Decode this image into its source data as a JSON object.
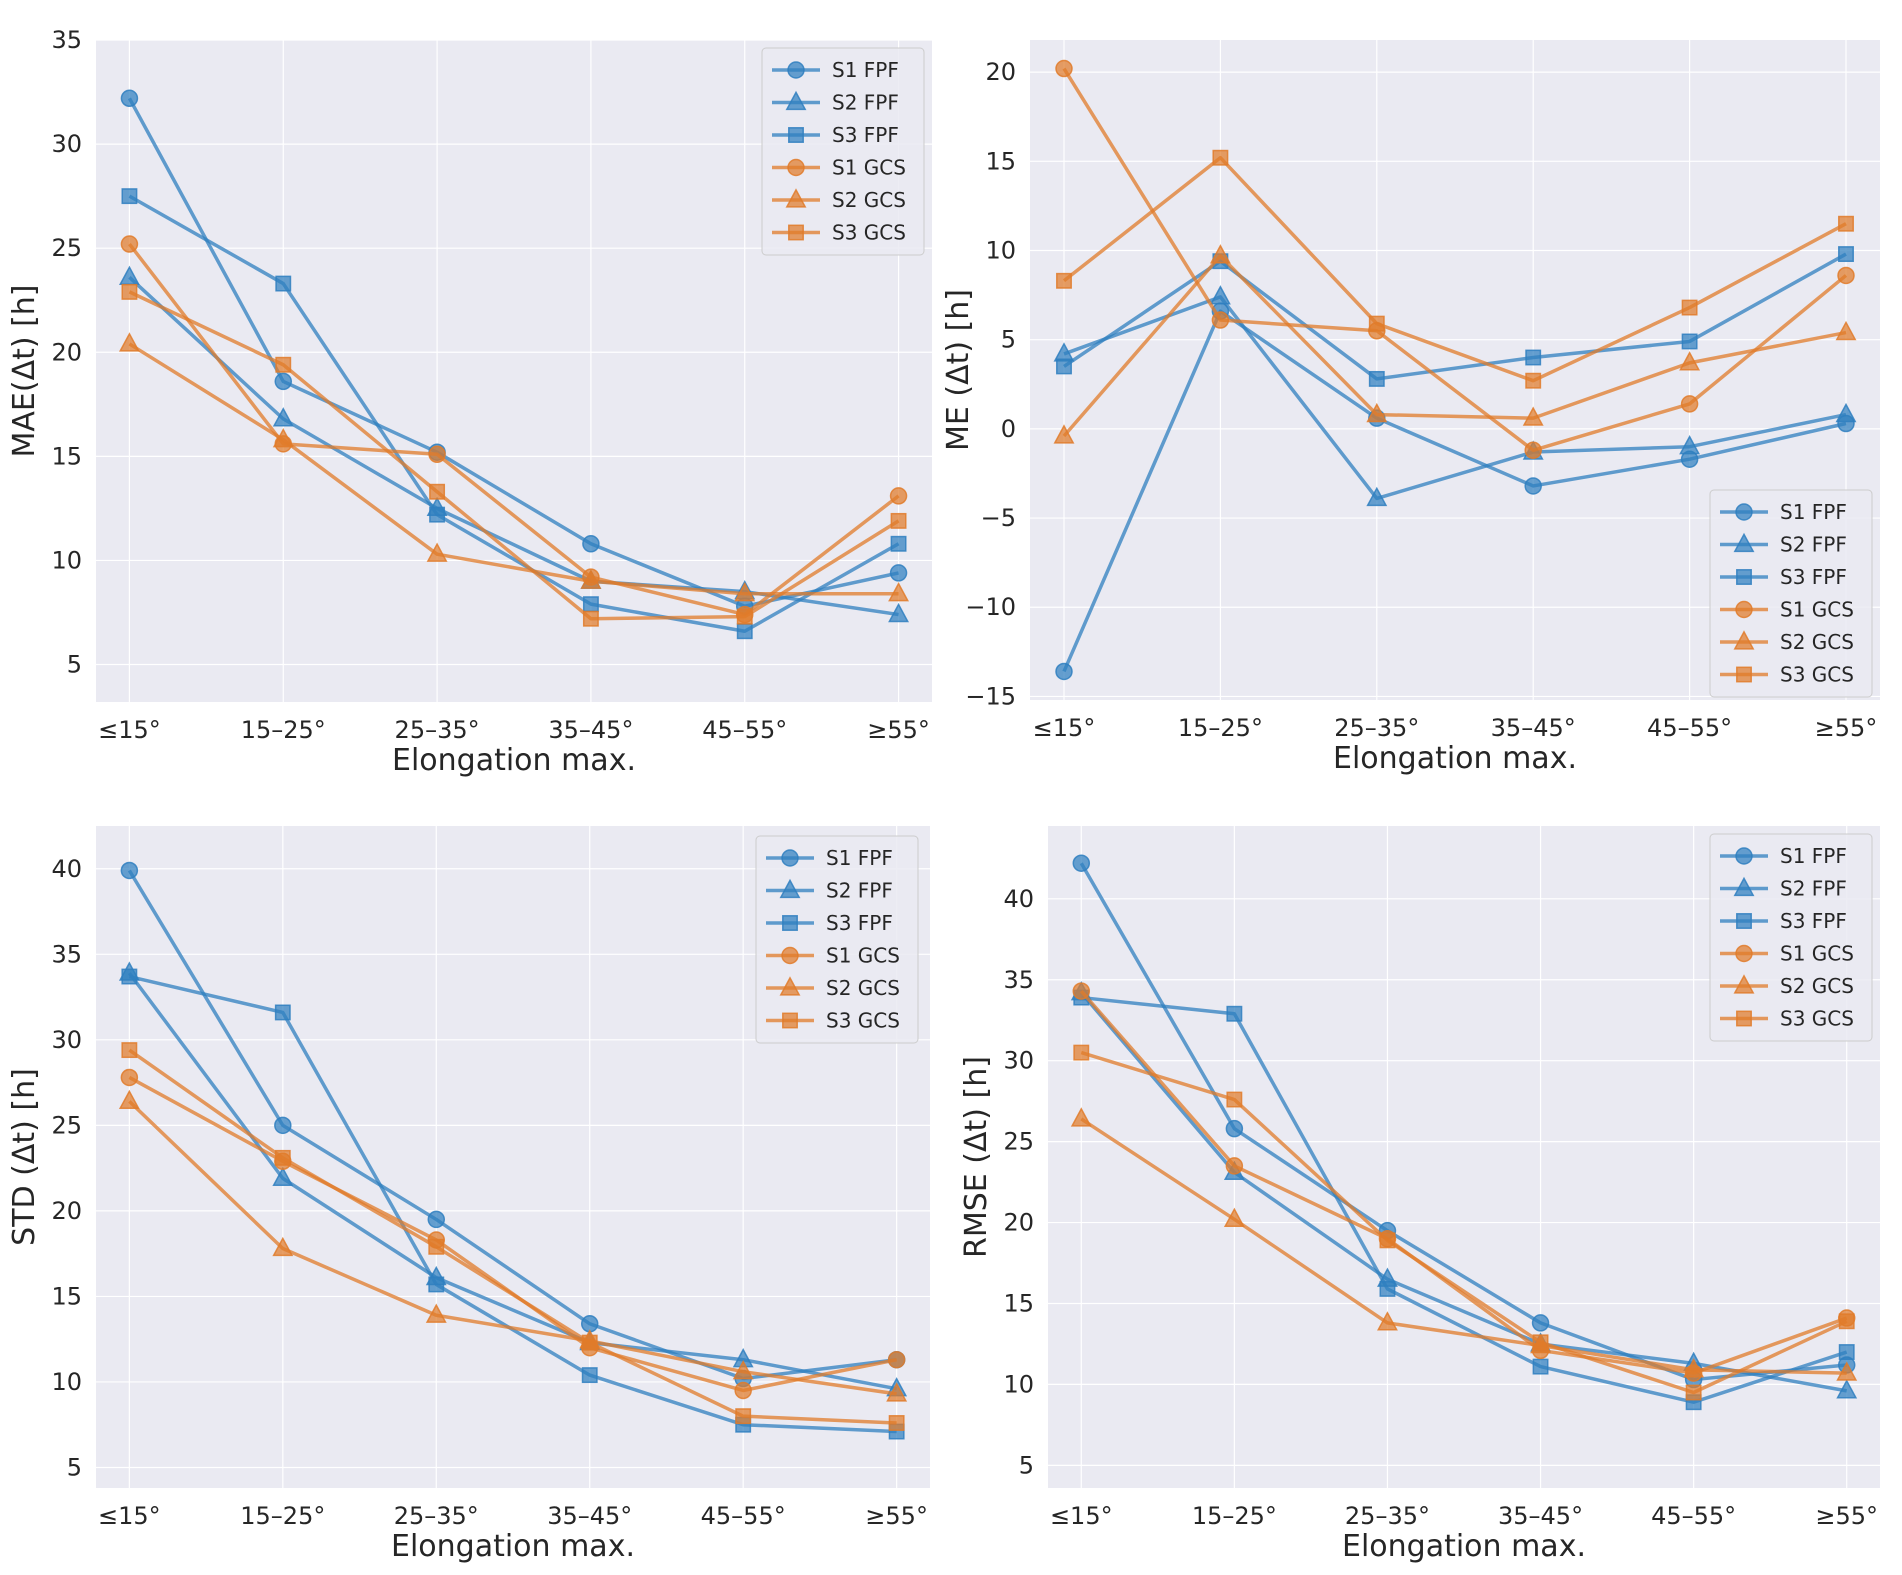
{
  "colors": {
    "FPF": "#2f7fbf",
    "GCS": "#e07b2a",
    "panel_bg": "#eaeaf2",
    "grid": "#ffffff"
  },
  "chart_data": [
    {
      "type": "line",
      "ylabel": "MAE(Δt) [h]",
      "xlabel": "Elongation max.",
      "categories": [
        "≤15°",
        "15–25°",
        "25–35°",
        "35–45°",
        "45–55°",
        "≥55°"
      ],
      "ylim": [
        3.2,
        35
      ],
      "yticks": [
        5,
        10,
        15,
        20,
        25,
        30,
        35
      ],
      "legend": "top-right",
      "series": [
        {
          "name": "S1 FPF",
          "group": "FPF",
          "marker": "circle",
          "values": [
            32.2,
            18.6,
            15.2,
            10.8,
            7.8,
            9.4
          ]
        },
        {
          "name": "S2 FPF",
          "group": "FPF",
          "marker": "triangle",
          "values": [
            23.6,
            16.8,
            12.5,
            9.0,
            8.5,
            7.4
          ]
        },
        {
          "name": "S3 FPF",
          "group": "FPF",
          "marker": "square",
          "values": [
            27.5,
            23.3,
            12.2,
            7.9,
            6.6,
            10.8
          ]
        },
        {
          "name": "S1 GCS",
          "group": "GCS",
          "marker": "circle",
          "values": [
            25.2,
            15.6,
            15.1,
            9.2,
            7.4,
            13.1
          ]
        },
        {
          "name": "S2 GCS",
          "group": "GCS",
          "marker": "triangle",
          "values": [
            20.4,
            15.8,
            10.3,
            9.0,
            8.4,
            8.4
          ]
        },
        {
          "name": "S3 GCS",
          "group": "GCS",
          "marker": "square",
          "values": [
            22.9,
            19.4,
            13.3,
            7.2,
            7.3,
            11.9
          ]
        }
      ]
    },
    {
      "type": "line",
      "ylabel": "ME (Δt) [h]",
      "xlabel": "Elongation max.",
      "categories": [
        "≤15°",
        "15–25°",
        "25–35°",
        "35–45°",
        "45–55°",
        "≥55°"
      ],
      "ylim": [
        -15.2,
        21.8
      ],
      "yticks": [
        -15,
        -10,
        -5,
        0,
        5,
        10,
        15,
        20
      ],
      "legend": "bottom-right",
      "series": [
        {
          "name": "S1 FPF",
          "group": "FPF",
          "marker": "circle",
          "values": [
            -13.6,
            6.6,
            0.6,
            -3.2,
            -1.7,
            0.3
          ]
        },
        {
          "name": "S2 FPF",
          "group": "FPF",
          "marker": "triangle",
          "values": [
            4.2,
            7.4,
            -3.9,
            -1.3,
            -1.0,
            0.8
          ]
        },
        {
          "name": "S3 FPF",
          "group": "FPF",
          "marker": "square",
          "values": [
            3.5,
            9.4,
            2.8,
            4.0,
            4.9,
            9.8
          ]
        },
        {
          "name": "S1 GCS",
          "group": "GCS",
          "marker": "circle",
          "values": [
            20.2,
            6.1,
            5.5,
            -1.2,
            1.4,
            8.6
          ]
        },
        {
          "name": "S2 GCS",
          "group": "GCS",
          "marker": "triangle",
          "values": [
            -0.4,
            9.7,
            0.8,
            0.6,
            3.7,
            5.4
          ]
        },
        {
          "name": "S3 GCS",
          "group": "GCS",
          "marker": "square",
          "values": [
            8.3,
            15.2,
            5.9,
            2.7,
            6.8,
            11.5
          ]
        }
      ]
    },
    {
      "type": "line",
      "ylabel": "STD (Δt) [h]",
      "xlabel": "Elongation max.",
      "categories": [
        "≤15°",
        "15–25°",
        "25–35°",
        "35–45°",
        "45–55°",
        "≥55°"
      ],
      "ylim": [
        3.8,
        42.5
      ],
      "yticks": [
        5,
        10,
        15,
        20,
        25,
        30,
        35,
        40
      ],
      "legend": "top-right",
      "series": [
        {
          "name": "S1 FPF",
          "group": "FPF",
          "marker": "circle",
          "values": [
            39.9,
            25.0,
            19.5,
            13.4,
            10.2,
            11.3
          ]
        },
        {
          "name": "S2 FPF",
          "group": "FPF",
          "marker": "triangle",
          "values": [
            33.9,
            21.9,
            16.1,
            12.3,
            11.3,
            9.6
          ]
        },
        {
          "name": "S3 FPF",
          "group": "FPF",
          "marker": "square",
          "values": [
            33.7,
            31.6,
            15.7,
            10.4,
            7.5,
            7.1
          ]
        },
        {
          "name": "S1 GCS",
          "group": "GCS",
          "marker": "circle",
          "values": [
            27.8,
            22.9,
            18.3,
            12.0,
            9.5,
            11.3
          ]
        },
        {
          "name": "S2 GCS",
          "group": "GCS",
          "marker": "triangle",
          "values": [
            26.4,
            17.8,
            13.9,
            12.4,
            10.6,
            9.3
          ]
        },
        {
          "name": "S3 GCS",
          "group": "GCS",
          "marker": "square",
          "values": [
            29.4,
            23.1,
            17.9,
            12.3,
            8.0,
            7.6
          ]
        }
      ]
    },
    {
      "type": "line",
      "ylabel": "RMSE (Δt) [h]",
      "xlabel": "Elongation max.",
      "categories": [
        "≤15°",
        "15–25°",
        "25–35°",
        "35–45°",
        "45–55°",
        "≥55°"
      ],
      "ylim": [
        3.6,
        44.5
      ],
      "yticks": [
        5,
        10,
        15,
        20,
        25,
        30,
        35,
        40
      ],
      "legend": "top-right",
      "series": [
        {
          "name": "S1 FPF",
          "group": "FPF",
          "marker": "circle",
          "values": [
            42.2,
            25.8,
            19.5,
            13.8,
            10.3,
            11.2
          ]
        },
        {
          "name": "S2 FPF",
          "group": "FPF",
          "marker": "triangle",
          "values": [
            34.2,
            23.1,
            16.5,
            12.5,
            11.3,
            9.6
          ]
        },
        {
          "name": "S3 FPF",
          "group": "FPF",
          "marker": "square",
          "values": [
            33.9,
            32.9,
            15.9,
            11.1,
            8.9,
            12.0
          ]
        },
        {
          "name": "S1 GCS",
          "group": "GCS",
          "marker": "circle",
          "values": [
            34.3,
            23.5,
            19.0,
            12.1,
            10.7,
            14.1
          ]
        },
        {
          "name": "S2 GCS",
          "group": "GCS",
          "marker": "triangle",
          "values": [
            26.4,
            20.2,
            13.8,
            12.4,
            10.9,
            10.7
          ]
        },
        {
          "name": "S3 GCS",
          "group": "GCS",
          "marker": "square",
          "values": [
            30.5,
            27.6,
            18.9,
            12.6,
            9.5,
            13.9
          ]
        }
      ]
    }
  ]
}
